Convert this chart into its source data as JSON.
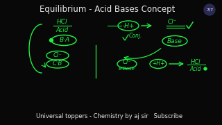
{
  "bg_color": "#080808",
  "title_text": "Equilibrium - Acid Bases Concept",
  "title_color": "#e8e8e8",
  "title_fontsize": 8.5,
  "footer_text": "Universal toppers - Chemistry by aj sir   Subscribe",
  "footer_color": "#e8e8e8",
  "footer_fontsize": 6.0,
  "badge_text": "7/7",
  "hc": "#22ee44",
  "yc": "#aacc44",
  "wc": "#ffffff",
  "badge_bg": "#2a2a55"
}
